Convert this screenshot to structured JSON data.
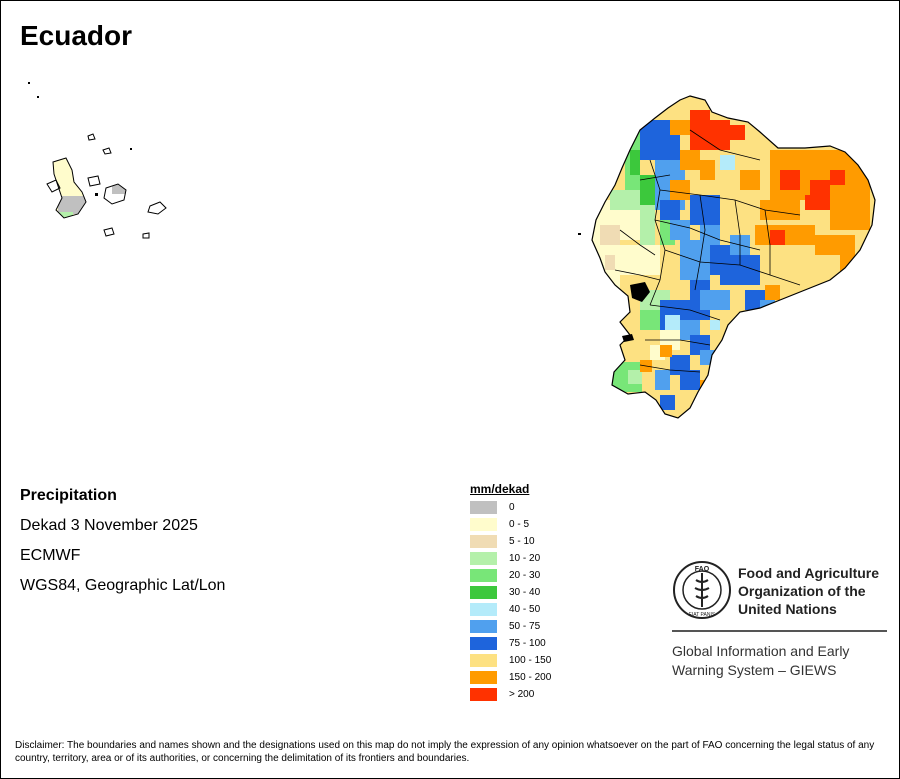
{
  "map": {
    "title": "Ecuador",
    "variable": "Precipitation",
    "period": "Dekad 3 November 2025",
    "source": "ECMWF",
    "projection": "WGS84, Geographic Lat/Lon"
  },
  "legend": {
    "title": "mm/dekad",
    "classes": [
      {
        "label": "0",
        "color": "#c0c0c0"
      },
      {
        "label": "0 - 5",
        "color": "#fffccc"
      },
      {
        "label": "5 - 10",
        "color": "#f0dcb4"
      },
      {
        "label": "10 - 20",
        "color": "#b4f0aa"
      },
      {
        "label": "20 - 30",
        "color": "#78e678"
      },
      {
        "label": "30 - 40",
        "color": "#3cc83c"
      },
      {
        "label": "40 - 50",
        "color": "#b4ebfa"
      },
      {
        "label": "50 - 75",
        "color": "#50a0ee"
      },
      {
        "label": "75 - 100",
        "color": "#1e64dc"
      },
      {
        "label": "100 - 150",
        "color": "#fde182"
      },
      {
        "label": "150 - 200",
        "color": "#ff9b00"
      },
      {
        "label": "> 200",
        "color": "#ff3200"
      }
    ]
  },
  "logo": {
    "org_line1": "Food and Agriculture",
    "org_line2": "Organization of the",
    "org_line3": "United Nations",
    "giews_line1": "Global Information and Early",
    "giews_line2": "Warning System – GIEWS",
    "emblem_text": "FAO",
    "motto": "FIAT PANIS"
  },
  "disclaimer": "Disclaimer: The boundaries and names shown and the designations used on this map do not imply the expression of any opinion whatsoever on the part of FAO concerning the legal status of any country, territory, area or of its authorities, or concerning the delimitation of its frontiers and boundaries."
}
